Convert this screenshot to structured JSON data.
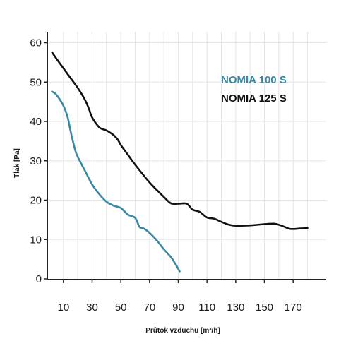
{
  "chart_data": {
    "type": "line",
    "xlabel": "Průtok vzduchu [m³/h]",
    "ylabel": "Tlak [Pa]",
    "xlim": [
      0,
      185
    ],
    "ylim": [
      0,
      65
    ],
    "x_ticks": [
      10,
      30,
      50,
      70,
      90,
      110,
      130,
      150,
      170
    ],
    "y_ticks": [
      0,
      10,
      20,
      30,
      40,
      50,
      60
    ],
    "grid": true,
    "legend_position": "top-right",
    "series": [
      {
        "name": "NOMIA 100 S",
        "color": "#3a87a3",
        "x": [
          2,
          5,
          10,
          13,
          15,
          18,
          20,
          25,
          30,
          35,
          40,
          45,
          50,
          55,
          60,
          63,
          66,
          70,
          75,
          80,
          85,
          88,
          91
        ],
        "y": [
          47.6,
          46.8,
          44.0,
          41.0,
          37.5,
          33.0,
          31.0,
          27.5,
          24.0,
          21.5,
          19.6,
          18.6,
          18.0,
          16.3,
          15.5,
          13.2,
          12.8,
          11.7,
          9.8,
          7.5,
          5.5,
          3.8,
          1.9
        ]
      },
      {
        "name": "NOMIA 125 S",
        "color": "#111111",
        "x": [
          2,
          5,
          10,
          15,
          20,
          25,
          28,
          30,
          35,
          40,
          45,
          48,
          50,
          55,
          60,
          70,
          80,
          85,
          90,
          95,
          97,
          100,
          105,
          110,
          115,
          120,
          125,
          130,
          140,
          150,
          157,
          162,
          168,
          175,
          180
        ],
        "y": [
          57.6,
          56.0,
          53.5,
          51.0,
          48.5,
          45.5,
          43.0,
          41.0,
          38.5,
          37.7,
          36.5,
          35.3,
          34.0,
          31.5,
          29.0,
          24.5,
          20.8,
          19.2,
          19.1,
          19.2,
          18.8,
          17.6,
          17.0,
          15.6,
          15.3,
          14.5,
          13.8,
          13.5,
          13.6,
          13.9,
          14.0,
          13.5,
          12.7,
          12.8,
          12.9
        ]
      }
    ]
  }
}
